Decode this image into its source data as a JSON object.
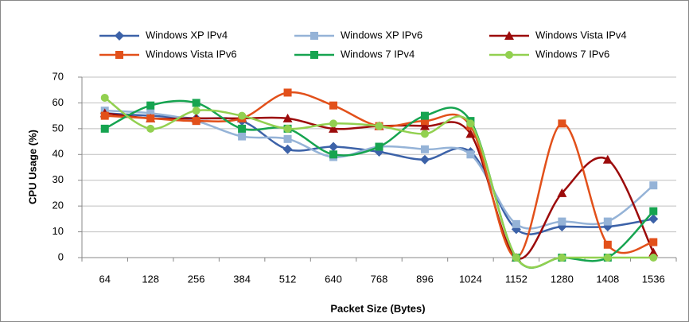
{
  "chart_data": {
    "type": "line",
    "x_label": "Packet Size (Bytes)",
    "y_label": "CPU Usage (%)",
    "categories": [
      "64",
      "128",
      "256",
      "384",
      "512",
      "640",
      "768",
      "896",
      "1024",
      "1152",
      "1280",
      "1408",
      "1536"
    ],
    "series": [
      {
        "name": "Windows XP IPv4",
        "color": "#3c62a8",
        "marker": "diamond",
        "values": [
          56,
          55,
          54,
          53,
          42,
          43,
          41,
          38,
          41,
          11,
          12,
          12,
          15
        ]
      },
      {
        "name": "Windows XP IPv6",
        "color": "#95b3d7",
        "marker": "square",
        "values": [
          57,
          56,
          53,
          47,
          46,
          39,
          43,
          42,
          40,
          13,
          14,
          14,
          28
        ]
      },
      {
        "name": "Windows Vista IPv4",
        "color": "#9c0b0b",
        "marker": "triangle",
        "values": [
          56,
          54,
          54,
          54,
          54,
          50,
          51,
          51,
          48,
          0,
          25,
          38,
          2
        ]
      },
      {
        "name": "Windows Vista IPv6",
        "color": "#e2501a",
        "marker": "square",
        "values": [
          55,
          54,
          53,
          54,
          64,
          59,
          51,
          53,
          51,
          0,
          52,
          5,
          6
        ]
      },
      {
        "name": "Windows 7 IPv4",
        "color": "#16a450",
        "marker": "square",
        "values": [
          50,
          59,
          60,
          50,
          50,
          40,
          43,
          55,
          53,
          0,
          0,
          0,
          18
        ]
      },
      {
        "name": "Windows 7 IPv6",
        "color": "#92d050",
        "marker": "circle",
        "values": [
          62,
          50,
          57,
          55,
          50,
          52,
          51,
          48,
          52,
          0,
          0,
          0,
          0
        ]
      }
    ],
    "ylim": [
      0,
      70
    ],
    "yticks": [
      0,
      10,
      20,
      30,
      40,
      50,
      60,
      70
    ],
    "grid": true,
    "smooth": true,
    "legend": "top"
  }
}
